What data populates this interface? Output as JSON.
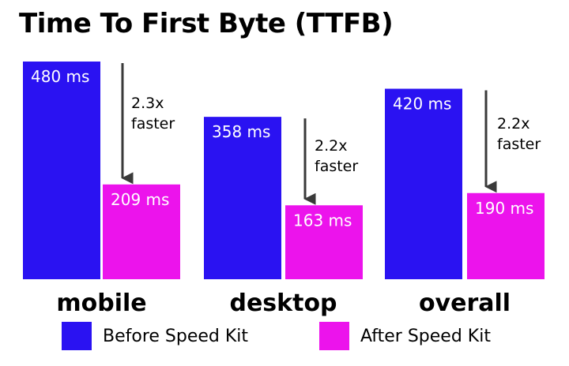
{
  "title": "Time To First Byte (TTFB)",
  "legend": {
    "before": {
      "label": "Before Speed Kit",
      "color": "#2a12f2"
    },
    "after": {
      "label": "After Speed Kit",
      "color": "#ec13ec"
    }
  },
  "chart_data": {
    "type": "bar",
    "title": "Time To First Byte (TTFB)",
    "xlabel": "",
    "ylabel": "",
    "unit": "ms",
    "ylim": [
      0,
      480
    ],
    "grid": false,
    "legend_position": "bottom",
    "categories": [
      "mobile",
      "desktop",
      "overall"
    ],
    "series": [
      {
        "name": "Before Speed Kit",
        "color": "#2a12f2",
        "values": [
          480,
          358,
          420
        ],
        "labels": [
          "480 ms",
          "358 ms",
          "420 ms"
        ]
      },
      {
        "name": "After Speed Kit",
        "color": "#ec13ec",
        "values": [
          209,
          163,
          190
        ],
        "labels": [
          "209 ms",
          "163 ms",
          "190 ms"
        ]
      }
    ],
    "annotations": [
      {
        "category": "mobile",
        "line1": "2.3x",
        "line2": "faster"
      },
      {
        "category": "desktop",
        "line1": "2.2x",
        "line2": "faster"
      },
      {
        "category": "overall",
        "line1": "2.2x",
        "line2": "faster"
      }
    ]
  }
}
